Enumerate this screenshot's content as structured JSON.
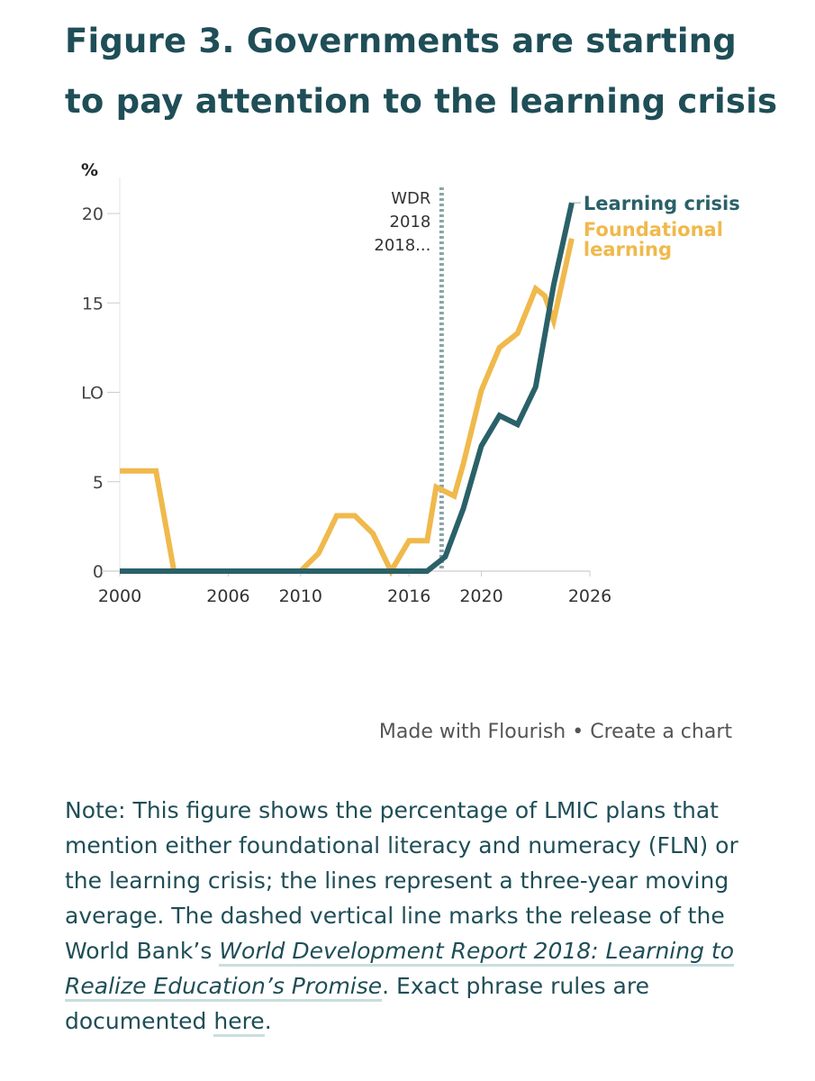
{
  "header": {
    "title": "Figure 3. Governments are starting to pay attention to the learning crisis"
  },
  "chart_data": {
    "type": "line",
    "ylabel": "%",
    "x_ticks": [
      2000,
      2006,
      2010,
      2016,
      2020,
      2026
    ],
    "y_ticks": [
      "0",
      "5",
      "LO",
      "15",
      "20"
    ],
    "xlim": [
      2000,
      2026
    ],
    "ylim": [
      0,
      20
    ],
    "grid": false,
    "legend": "end-of-line labels, right",
    "annotation": {
      "x": 2017.8,
      "lines": [
        "WDR",
        "2018",
        "2018..."
      ],
      "style": "dashed vertical line"
    },
    "series": [
      {
        "name": "Learning crisis",
        "color": "#2a6169",
        "x": [
          2000,
          2001,
          2002,
          2003,
          2004,
          2005,
          2006,
          2007,
          2008,
          2009,
          2010,
          2011,
          2012,
          2013,
          2014,
          2015,
          2016,
          2017,
          2018,
          2019,
          2020,
          2021,
          2022,
          2023,
          2024,
          2025
        ],
        "values": [
          0,
          0,
          0,
          0,
          0,
          0,
          0,
          0,
          0,
          0,
          0,
          0,
          0,
          0,
          0,
          0,
          0,
          0,
          0.8,
          3.5,
          7.0,
          8.7,
          8.2,
          10.3,
          16.0,
          20.6
        ]
      },
      {
        "name": "Foundational learning",
        "color": "#f0b94c",
        "x": [
          2000,
          2001,
          2002,
          2003,
          2004,
          2005,
          2006,
          2007,
          2008,
          2009,
          2010,
          2011,
          2012,
          2013,
          2014,
          2015,
          2016,
          2017,
          2017.5,
          2018.5,
          2019,
          2020,
          2021,
          2022,
          2023,
          2023.5,
          2024,
          2025
        ],
        "values": [
          5.6,
          5.6,
          5.6,
          0,
          0,
          0,
          0,
          0,
          0,
          0,
          0,
          1.0,
          3.1,
          3.1,
          2.1,
          0,
          1.7,
          1.7,
          4.7,
          4.2,
          6.0,
          10.1,
          12.5,
          13.3,
          15.8,
          15.4,
          14.0,
          18.6
        ]
      }
    ]
  },
  "footer": {
    "credit_made": "Made with Flourish",
    "credit_sep": "•",
    "credit_create": "Create a chart"
  },
  "note": {
    "part1": "Note: This figure shows the percentage of LMIC plans that mention either foundational literacy and numeracy (FLN) or the learning crisis; the lines represent a three-year moving average. The dashed vertical line marks the release of the World Bank’s ",
    "link_title": "World Development Report 2018: Learning to Realize Education’s Promise",
    "part2": ". Exact phrase rules are documented ",
    "link_here": "here",
    "part3": "."
  }
}
